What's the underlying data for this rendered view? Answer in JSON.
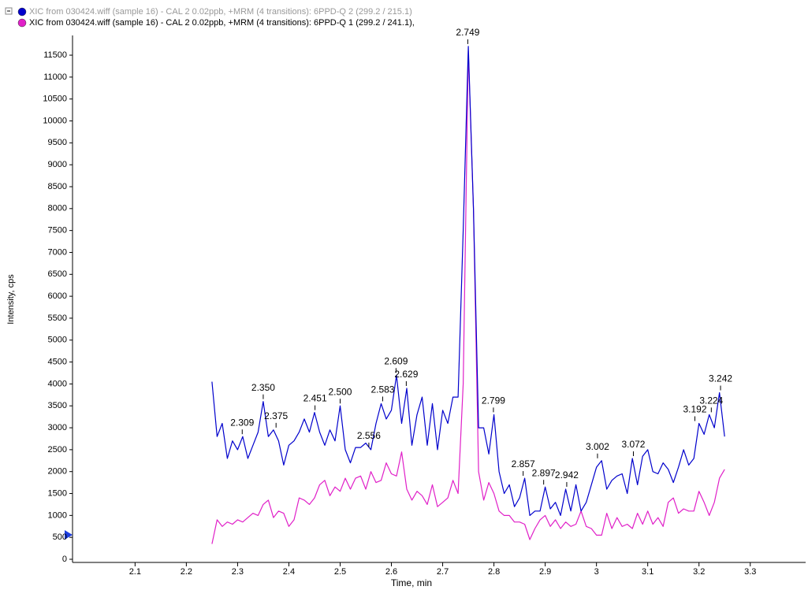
{
  "chart_data": {
    "type": "line",
    "xlabel": "Time, min",
    "ylabel": "Intensity, cps",
    "x": [
      2.25,
      2.26,
      2.27,
      2.28,
      2.29,
      2.3,
      2.31,
      2.32,
      2.33,
      2.34,
      2.35,
      2.36,
      2.37,
      2.38,
      2.39,
      2.4,
      2.41,
      2.42,
      2.43,
      2.44,
      2.45,
      2.46,
      2.47,
      2.48,
      2.49,
      2.5,
      2.51,
      2.52,
      2.53,
      2.54,
      2.55,
      2.56,
      2.57,
      2.58,
      2.59,
      2.6,
      2.61,
      2.62,
      2.63,
      2.64,
      2.65,
      2.66,
      2.67,
      2.68,
      2.69,
      2.7,
      2.71,
      2.72,
      2.73,
      2.74,
      2.75,
      2.76,
      2.77,
      2.78,
      2.79,
      2.8,
      2.81,
      2.82,
      2.83,
      2.84,
      2.85,
      2.86,
      2.87,
      2.88,
      2.89,
      2.9,
      2.91,
      2.92,
      2.93,
      2.94,
      2.95,
      2.96,
      2.97,
      2.98,
      2.99,
      3.0,
      3.01,
      3.02,
      3.03,
      3.04,
      3.05,
      3.06,
      3.07,
      3.08,
      3.09,
      3.1,
      3.11,
      3.12,
      3.13,
      3.14,
      3.15,
      3.16,
      3.17,
      3.18,
      3.19,
      3.2,
      3.21,
      3.22,
      3.23,
      3.24,
      3.25
    ],
    "series": [
      {
        "name": "XIC from 030424.wiff (sample 16) - CAL 2 0.02ppb, +MRM (4 transitions): 6PPD-Q 2 (299.2 / 215.1)",
        "color": "#0000cc",
        "values": [
          4050,
          2800,
          3100,
          2300,
          2700,
          2500,
          2800,
          2300,
          2600,
          2900,
          3600,
          2800,
          2950,
          2700,
          2150,
          2600,
          2700,
          2900,
          3200,
          2900,
          3350,
          2900,
          2600,
          2950,
          2700,
          3500,
          2500,
          2200,
          2550,
          2550,
          2650,
          2500,
          3100,
          3550,
          3200,
          3400,
          4200,
          3100,
          3900,
          2600,
          3300,
          3700,
          2600,
          3550,
          2500,
          3400,
          3100,
          3700,
          3700,
          7500,
          11700,
          8000,
          3000,
          3000,
          2400,
          3300,
          2000,
          1500,
          1700,
          1200,
          1400,
          1850,
          1000,
          1100,
          1100,
          1650,
          1150,
          1300,
          1000,
          1600,
          1100,
          1700,
          1100,
          1300,
          1700,
          2100,
          2250,
          1600,
          1800,
          1900,
          1950,
          1500,
          2300,
          1700,
          2350,
          2500,
          2000,
          1950,
          2200,
          2050,
          1750,
          2100,
          2500,
          2150,
          2300,
          3100,
          2850,
          3300,
          3000,
          3800,
          2800
        ]
      },
      {
        "name": "XIC from 030424.wiff (sample 16) - CAL 2 0.02ppb, +MRM (4 transitions): 6PPD-Q 1 (299.2 / 241.1),",
        "color": "#e020c8",
        "values": [
          350,
          900,
          750,
          850,
          800,
          900,
          850,
          950,
          1050,
          1000,
          1250,
          1350,
          950,
          1100,
          1050,
          750,
          900,
          1400,
          1350,
          1250,
          1400,
          1700,
          1800,
          1450,
          1650,
          1550,
          1850,
          1600,
          1850,
          1900,
          1600,
          2000,
          1750,
          1800,
          2200,
          1950,
          1900,
          2450,
          1600,
          1350,
          1550,
          1450,
          1250,
          1700,
          1200,
          1300,
          1400,
          1800,
          1500,
          4000,
          11600,
          8000,
          2000,
          1350,
          1750,
          1500,
          1100,
          1000,
          1000,
          850,
          850,
          800,
          450,
          700,
          900,
          1000,
          750,
          900,
          700,
          850,
          750,
          800,
          1100,
          750,
          700,
          550,
          550,
          1050,
          700,
          950,
          750,
          800,
          700,
          1050,
          800,
          1100,
          800,
          950,
          750,
          1300,
          1400,
          1050,
          1150,
          1100,
          1100,
          1550,
          1300,
          1000,
          1300,
          1850,
          2050
        ]
      }
    ],
    "annotations": [
      {
        "text": "2.309",
        "x": 2.309,
        "y": 2800
      },
      {
        "text": "2.350",
        "x": 2.35,
        "y": 3600
      },
      {
        "text": "2.375",
        "x": 2.375,
        "y": 2950
      },
      {
        "text": "2.451",
        "x": 2.451,
        "y": 3350
      },
      {
        "text": "2.500",
        "x": 2.5,
        "y": 3500
      },
      {
        "text": "2.556",
        "x": 2.556,
        "y": 2500
      },
      {
        "text": "2.583",
        "x": 2.583,
        "y": 3550
      },
      {
        "text": "2.609",
        "x": 2.609,
        "y": 4200
      },
      {
        "text": "2.629",
        "x": 2.629,
        "y": 3900
      },
      {
        "text": "2.749",
        "x": 2.749,
        "y": 11700
      },
      {
        "text": "2.799",
        "x": 2.799,
        "y": 3300
      },
      {
        "text": "2.857",
        "x": 2.857,
        "y": 1850
      },
      {
        "text": "2.897",
        "x": 2.897,
        "y": 1650
      },
      {
        "text": "2.942",
        "x": 2.942,
        "y": 1600
      },
      {
        "text": "3.002",
        "x": 3.002,
        "y": 2250
      },
      {
        "text": "3.072",
        "x": 3.072,
        "y": 2300
      },
      {
        "text": "3.192",
        "x": 3.192,
        "y": 3100
      },
      {
        "text": "3.224",
        "x": 3.224,
        "y": 3300
      },
      {
        "text": "3.242",
        "x": 3.242,
        "y": 3800
      }
    ],
    "xlim": [
      1.978,
      3.408
    ],
    "ylim": [
      0,
      11950
    ],
    "xticks": [
      2.1,
      2.2,
      2.3,
      2.4,
      2.5,
      2.6,
      2.7,
      2.8,
      2.9,
      3.0,
      3.1,
      3.2,
      3.3
    ],
    "yticks": [
      0,
      500,
      1000,
      1500,
      2000,
      2500,
      3000,
      3500,
      4000,
      4500,
      5000,
      5500,
      6000,
      6500,
      7000,
      7500,
      8000,
      8500,
      9000,
      9500,
      10000,
      10500,
      11000,
      11500
    ]
  }
}
